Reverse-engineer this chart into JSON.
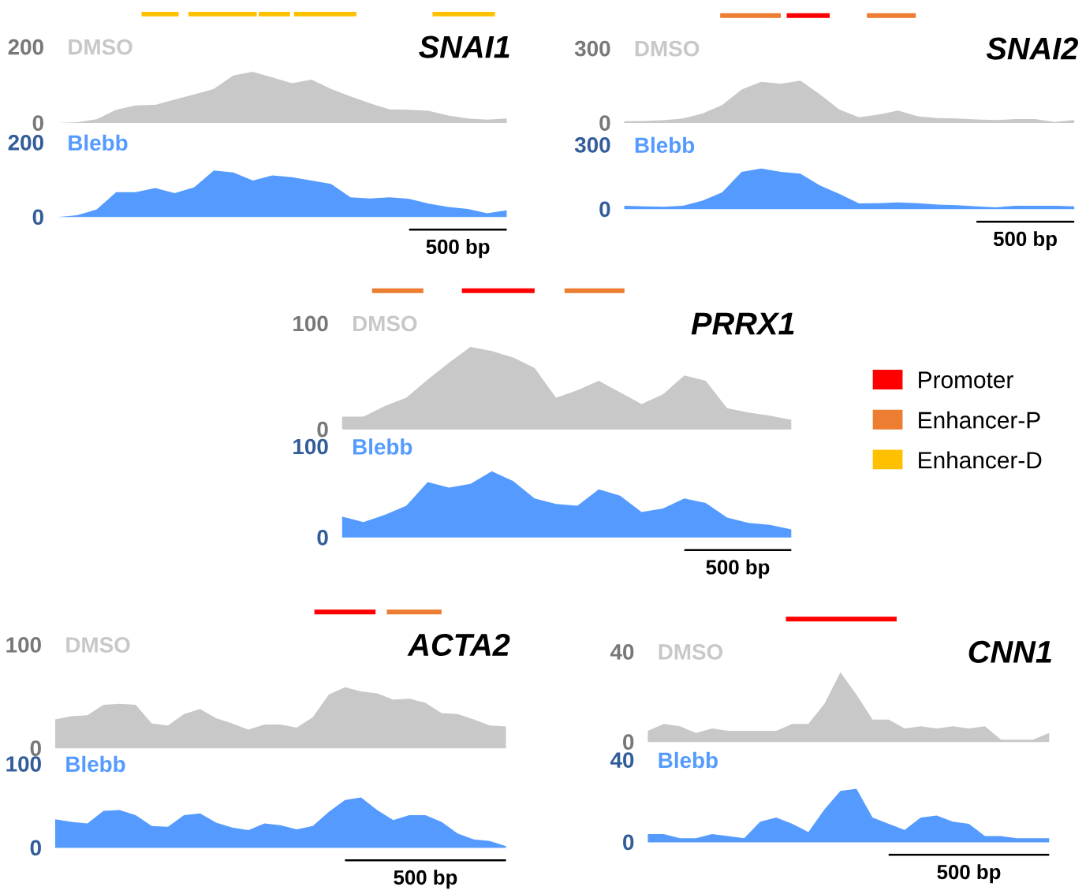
{
  "chart_data": [
    {
      "type": "area",
      "title": "SNAI1",
      "categories": [
        null,
        null,
        null,
        null,
        null,
        null,
        null,
        null,
        null,
        null,
        null,
        null,
        null,
        null,
        null,
        null,
        null,
        null,
        null,
        null,
        null,
        null,
        null,
        null
      ],
      "ylim": [
        0,
        200
      ],
      "yticks": [
        0,
        200
      ],
      "tick_labels": "y",
      "series": [
        {
          "name": "DMSO",
          "color": "#c8c8c8",
          "values": [
            0,
            2,
            10,
            35,
            46,
            48,
            62,
            75,
            90,
            125,
            135,
            120,
            105,
            114,
            90,
            70,
            52,
            36,
            35,
            32,
            20,
            12,
            9,
            12
          ]
        }
      ]
    },
    {
      "type": "area",
      "categories": [
        null,
        null,
        null,
        null,
        null,
        null,
        null,
        null,
        null,
        null,
        null,
        null,
        null,
        null,
        null,
        null,
        null,
        null,
        null,
        null,
        null,
        null,
        null,
        null
      ],
      "ylim": [
        0,
        200
      ],
      "yticks": [
        0,
        200
      ],
      "tick_labels": "y",
      "series": [
        {
          "name": "Blebb",
          "color": "#559bff",
          "values": [
            0,
            5,
            20,
            67,
            67,
            78,
            64,
            80,
            125,
            120,
            98,
            112,
            107,
            98,
            89,
            53,
            50,
            53,
            49,
            36,
            27,
            22,
            10,
            18
          ]
        }
      ],
      "annotations": [
        "500 bp"
      ]
    },
    {
      "type": "area",
      "title": "SNAI2",
      "categories": [
        null,
        null,
        null,
        null,
        null,
        null,
        null,
        null,
        null,
        null,
        null,
        null,
        null,
        null,
        null,
        null,
        null,
        null,
        null,
        null,
        null,
        null,
        null,
        null
      ],
      "ylim": [
        0,
        300
      ],
      "yticks": [
        0,
        300
      ],
      "tick_labels": "y",
      "series": [
        {
          "name": "DMSO",
          "color": "#c8c8c8",
          "values": [
            7,
            8,
            11,
            18,
            38,
            72,
            135,
            166,
            158,
            171,
            115,
            54,
            23,
            34,
            50,
            27,
            20,
            18,
            14,
            12,
            16,
            16,
            4,
            12
          ]
        }
      ]
    },
    {
      "type": "area",
      "categories": [
        null,
        null,
        null,
        null,
        null,
        null,
        null,
        null,
        null,
        null,
        null,
        null,
        null,
        null,
        null,
        null,
        null,
        null,
        null,
        null,
        null,
        null,
        null,
        null
      ],
      "ylim": [
        0,
        300
      ],
      "yticks": [
        0,
        300
      ],
      "tick_labels": "y",
      "series": [
        {
          "name": "Blebb",
          "color": "#559bff",
          "values": [
            16,
            13,
            11,
            16,
            40,
            79,
            174,
            190,
            174,
            166,
            111,
            71,
            27,
            28,
            32,
            28,
            22,
            19,
            13,
            9,
            16,
            16,
            16,
            13
          ]
        }
      ],
      "annotations": [
        "500 bp"
      ]
    },
    {
      "type": "area",
      "title": "PRRX1",
      "categories": [
        null,
        null,
        null,
        null,
        null,
        null,
        null,
        null,
        null,
        null,
        null,
        null,
        null,
        null,
        null,
        null,
        null,
        null,
        null,
        null,
        null,
        null
      ],
      "ylim": [
        0,
        100
      ],
      "yticks": [
        0,
        100
      ],
      "tick_labels": "y",
      "series": [
        {
          "name": "DMSO",
          "color": "#c8c8c8",
          "values": [
            12,
            12,
            22,
            30,
            47,
            63,
            78,
            74,
            68,
            58,
            30,
            37,
            46,
            35,
            24,
            33,
            51,
            46,
            20,
            16,
            13,
            9
          ]
        }
      ]
    },
    {
      "type": "area",
      "categories": [
        null,
        null,
        null,
        null,
        null,
        null,
        null,
        null,
        null,
        null,
        null,
        null,
        null,
        null,
        null,
        null,
        null,
        null,
        null,
        null,
        null,
        null
      ],
      "ylim": [
        0,
        100
      ],
      "yticks": [
        0,
        100
      ],
      "tick_labels": "y",
      "series": [
        {
          "name": "Blebb",
          "color": "#559bff",
          "values": [
            23,
            17,
            25,
            35,
            61,
            55,
            59,
            73,
            62,
            43,
            37,
            35,
            53,
            46,
            28,
            32,
            43,
            38,
            22,
            16,
            14,
            9
          ]
        }
      ],
      "annotations": [
        "500 bp"
      ]
    },
    {
      "type": "area",
      "title": "ACTA2",
      "categories": [
        null,
        null,
        null,
        null,
        null,
        null,
        null,
        null,
        null,
        null,
        null,
        null,
        null,
        null,
        null,
        null,
        null,
        null,
        null,
        null,
        null,
        null,
        null,
        null,
        null,
        null,
        null,
        null,
        null
      ],
      "ylim": [
        0,
        100
      ],
      "yticks": [
        0,
        100
      ],
      "tick_labels": "y",
      "series": [
        {
          "name": "DMSO",
          "color": "#c8c8c8",
          "values": [
            28,
            31,
            32,
            42,
            43,
            42,
            24,
            22,
            33,
            38,
            29,
            24,
            18,
            23,
            23,
            20,
            30,
            52,
            59,
            55,
            53,
            47,
            48,
            44,
            34,
            33,
            28,
            22,
            21
          ]
        }
      ]
    },
    {
      "type": "area",
      "categories": [
        null,
        null,
        null,
        null,
        null,
        null,
        null,
        null,
        null,
        null,
        null,
        null,
        null,
        null,
        null,
        null,
        null,
        null,
        null,
        null,
        null,
        null,
        null,
        null,
        null,
        null,
        null,
        null,
        null
      ],
      "ylim": [
        0,
        100
      ],
      "yticks": [
        0,
        100
      ],
      "tick_labels": "y",
      "series": [
        {
          "name": "Blebb",
          "color": "#559bff",
          "values": [
            34,
            31,
            29,
            44,
            45,
            39,
            26,
            25,
            39,
            41,
            30,
            24,
            21,
            29,
            27,
            22,
            26,
            43,
            57,
            60,
            45,
            33,
            39,
            39,
            31,
            17,
            10,
            8,
            2
          ]
        }
      ],
      "annotations": [
        "500 bp"
      ]
    },
    {
      "type": "area",
      "title": "CNN1",
      "categories": [
        null,
        null,
        null,
        null,
        null,
        null,
        null,
        null,
        null,
        null,
        null,
        null,
        null,
        null,
        null,
        null,
        null,
        null,
        null,
        null,
        null,
        null,
        null,
        null,
        null,
        null
      ],
      "ylim": [
        0,
        40
      ],
      "yticks": [
        0,
        40
      ],
      "tick_labels": "y",
      "series": [
        {
          "name": "DMSO",
          "color": "#c8c8c8",
          "values": [
            5,
            8,
            7,
            4,
            6,
            5,
            5,
            5,
            5,
            8,
            8,
            17,
            31,
            21,
            10,
            10,
            6,
            7,
            6,
            7,
            6,
            7,
            1,
            1,
            1,
            4
          ]
        }
      ]
    },
    {
      "type": "area",
      "categories": [
        null,
        null,
        null,
        null,
        null,
        null,
        null,
        null,
        null,
        null,
        null,
        null,
        null,
        null,
        null,
        null,
        null,
        null,
        null,
        null,
        null,
        null,
        null,
        null,
        null,
        null
      ],
      "ylim": [
        0,
        40
      ],
      "yticks": [
        0,
        40
      ],
      "tick_labels": "y",
      "series": [
        {
          "name": "Blebb",
          "color": "#559bff",
          "values": [
            4,
            4,
            2,
            2,
            4,
            3,
            2,
            10,
            12,
            9,
            5,
            16,
            25,
            26,
            12,
            9,
            6,
            12,
            13,
            10,
            9,
            3,
            3,
            2,
            2,
            2
          ]
        }
      ],
      "annotations": [
        "500 bp"
      ]
    },
    {
      "type": "other",
      "categories": [
        "Promoter",
        "Enhancer-P",
        "Enhancer-D"
      ],
      "colors": [
        "#ff0000",
        "#ed7d31",
        "#ffc000"
      ]
    }
  ]
}
